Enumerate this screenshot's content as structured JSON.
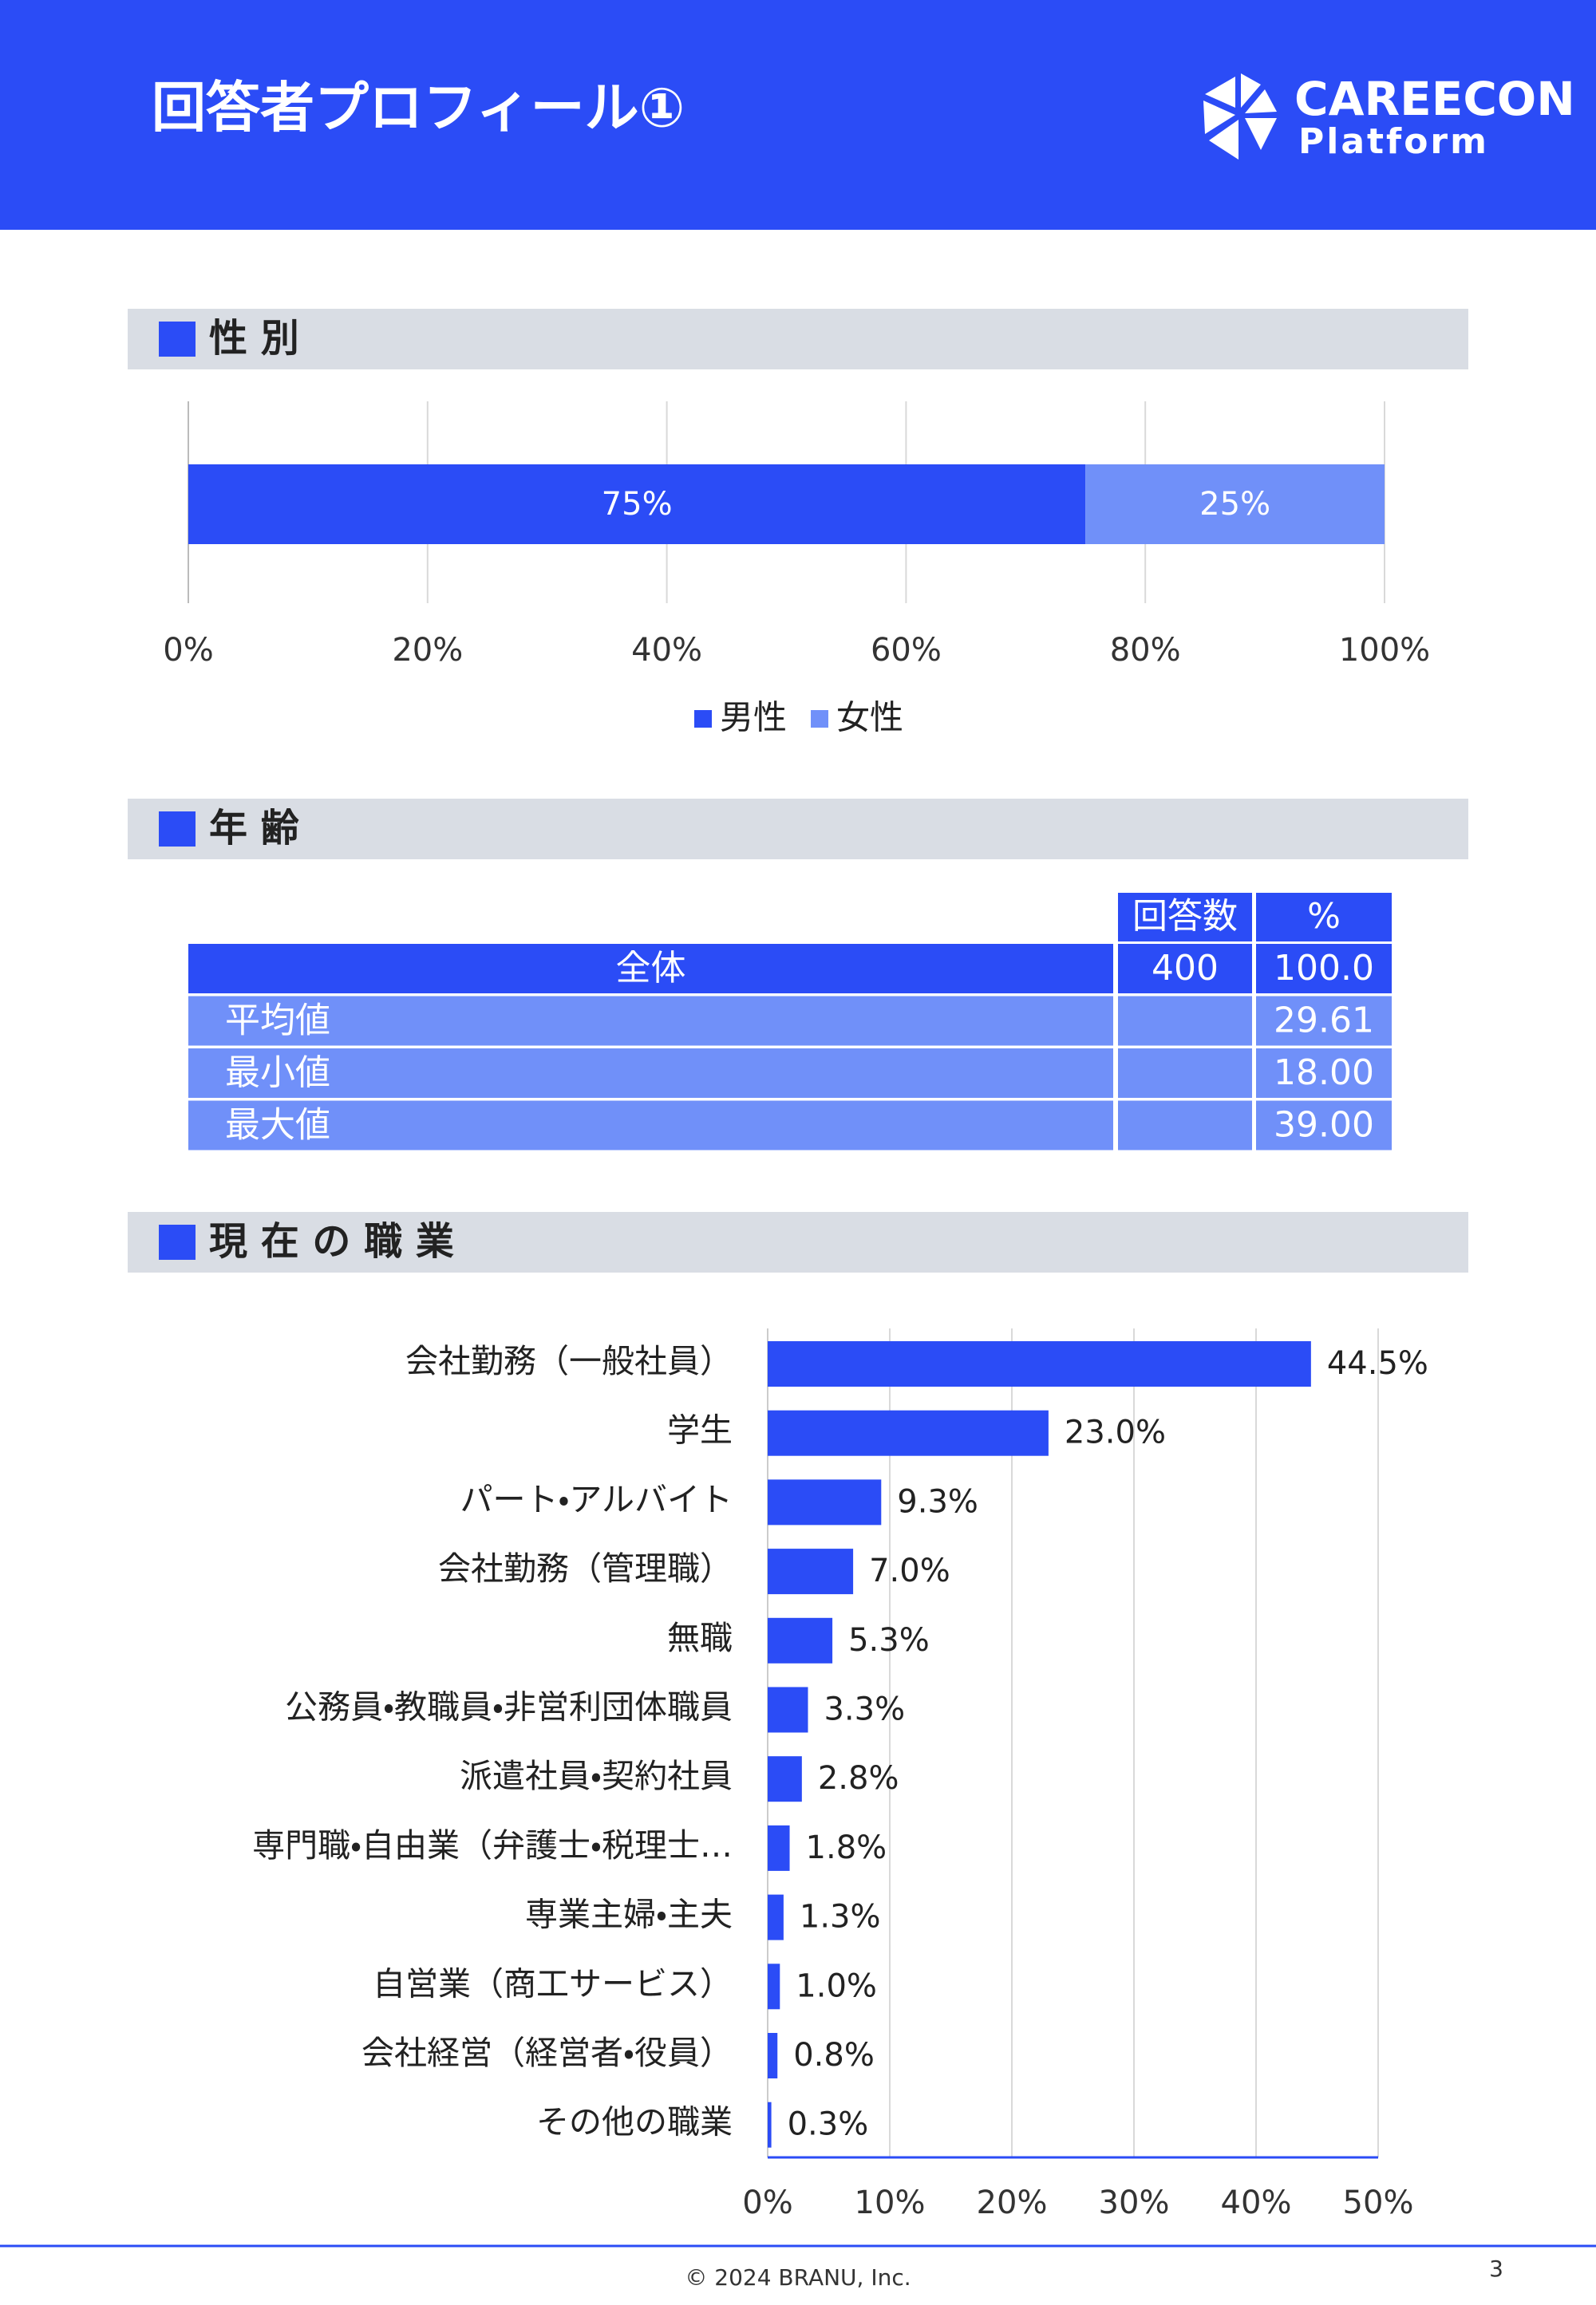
{
  "header": {
    "title": "回答者プロフィール①",
    "logo_line1": "CAREECON",
    "logo_line2": "Platform"
  },
  "sections": [
    "性 別",
    "年 齢",
    "現 在 の 職 業"
  ],
  "chart_data": [
    {
      "type": "stacked_bar_h",
      "series": [
        {
          "name": "男性",
          "color": "#2b4cf6",
          "values": [
            75
          ],
          "value_labels": [
            "75%"
          ]
        },
        {
          "name": "女性",
          "color": "#7090f9",
          "values": [
            25
          ],
          "value_labels": [
            "25%"
          ]
        }
      ],
      "xlim": [
        0,
        100
      ],
      "xticks": [
        {
          "value": 0,
          "label": "0%"
        },
        {
          "value": 20,
          "label": "20%"
        },
        {
          "value": 40,
          "label": "40%"
        },
        {
          "value": 60,
          "label": "60%"
        },
        {
          "value": 80,
          "label": "80%"
        },
        {
          "value": 100,
          "label": "100%"
        }
      ],
      "grid": true,
      "legend": "bottom"
    },
    {
      "type": "bar_h",
      "categories": [
        "会社勤務（一般社員）",
        "学生",
        "パート・アルバイト",
        "会社勤務（管理職）",
        "無職",
        "公務員・教職員・非営利団体職員",
        "派遣社員・契約社員",
        "専門職・自由業（弁護士・税理士…",
        "専業主婦・主夫",
        "自営業（商工サービス）",
        "会社経営（経営者・役員）",
        "その他の職業"
      ],
      "values": [
        44.5,
        23.0,
        9.3,
        7.0,
        5.3,
        3.3,
        2.8,
        1.8,
        1.3,
        1.0,
        0.8,
        0.3
      ],
      "value_labels": [
        "44.5%",
        "23.0%",
        "9.3%",
        "7.0%",
        "5.3%",
        "3.3%",
        "2.8%",
        "1.8%",
        "1.3%",
        "1.0%",
        "0.8%",
        "0.3%"
      ],
      "color": "#2b4cf6",
      "xlim": [
        0,
        50
      ],
      "xticks": [
        {
          "value": 0,
          "label": "0%"
        },
        {
          "value": 10,
          "label": "10%"
        },
        {
          "value": 20,
          "label": "20%"
        },
        {
          "value": 30,
          "label": "30%"
        },
        {
          "value": 40,
          "label": "40%"
        },
        {
          "value": 50,
          "label": "50%"
        }
      ],
      "grid": true
    }
  ],
  "age_table": {
    "columns": [
      "回答数",
      "%"
    ],
    "rows": [
      {
        "label": "全体",
        "count": "400",
        "pct": "100.0"
      },
      {
        "label": "平均値",
        "pct": "29.61"
      },
      {
        "label": "最小値",
        "pct": "18.00"
      },
      {
        "label": "最大値",
        "pct": "39.00"
      }
    ]
  },
  "footer": {
    "copyright": "© 2024 BRANU, Inc.",
    "page": "3"
  }
}
